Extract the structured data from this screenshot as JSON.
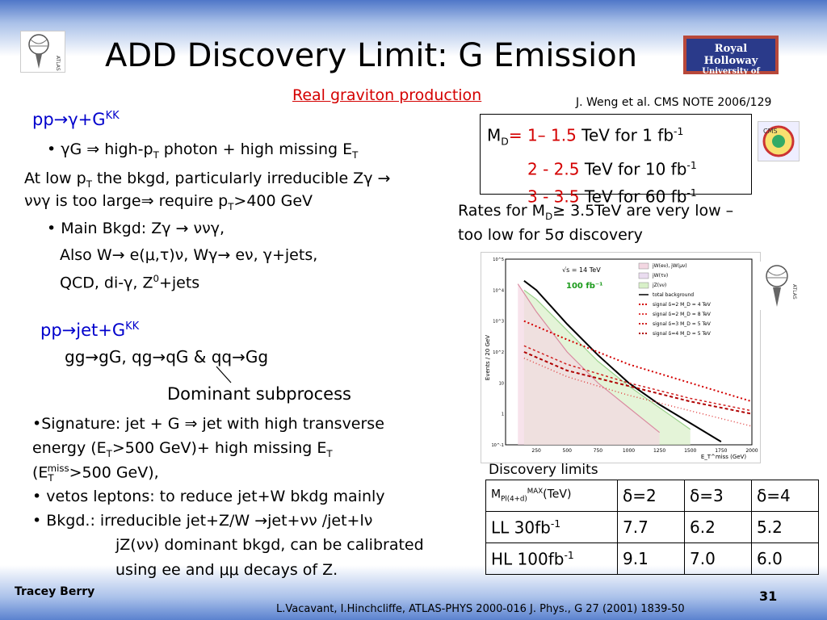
{
  "title": "ADD Discovery Limit: G Emission",
  "subtitle": "Real graviton production",
  "cms_ref": "J. Weng et al. CMS NOTE 2006/129",
  "logos": {
    "atlas_left": "atlas-logo",
    "royal_holloway_line1": "Royal Holloway",
    "royal_holloway_line2": "University of London",
    "cms": "cms-logo",
    "atlas_right": "atlas-logo"
  },
  "section1": {
    "heading_pre": "pp→γ+G",
    "heading_sup": "KK",
    "bullet1_pre": "• γG ⇒ high-p",
    "bullet1_sub1": "T",
    "bullet1_mid": " photon + high missing E",
    "bullet1_sub2": "T",
    "line1_pre": "At low p",
    "line1_sub": "T",
    "line1_post": " the bkgd, particularly irreducible Zγ →",
    "line2_pre": "ννγ is too large⇒ require p",
    "line2_sub": "T",
    "line2_post": ">400 GeV",
    "bkgd1": "• Main Bkgd: Zγ → ννγ,",
    "bkgd2": "Also W→ e(μ,τ)ν, Wγ→ eν, γ+jets,",
    "bkgd3_pre": "QCD, di-γ, Z",
    "bkgd3_sup": "0",
    "bkgd3_post": "+jets"
  },
  "md_box": {
    "label_pre": "M",
    "label_sub": "D",
    "rows": [
      {
        "prefix": "= ",
        "range": "1– 1.5",
        "text": " TeV for 1 fb",
        "sup": "-1"
      },
      {
        "prefix": "",
        "range": "2 - 2.5",
        "text": " TeV for 10 fb",
        "sup": "-1"
      },
      {
        "prefix": "",
        "range": "3 - 3.5",
        "text": " TeV for 60 fb",
        "sup": "-1"
      }
    ]
  },
  "rates": {
    "line1_pre": "Rates for M",
    "line1_sub": "D",
    "line1_post": "≥ 3.5TeV are very low –",
    "line2": "too low for 5σ discovery"
  },
  "section2": {
    "heading_pre": "pp→jet+G",
    "heading_sup": "KK",
    "processes": "gg→gG, qg→qG & qq→Gg",
    "dominant": "Dominant subprocess",
    "sig1": "•Signature: jet + G ⇒ jet with high transverse",
    "sig2_pre": "energy (E",
    "sig2_sub1": "T",
    "sig2_mid": ">500 GeV)+ high missing E",
    "sig2_sub2": "T",
    "sig3_pre": "(E",
    "sig3_sub": "T",
    "sig3_sup": "miss",
    "sig3_post": ">500 GeV),",
    "veto": "• vetos leptons: to reduce jet+W bkdg mainly",
    "bkgd1": "• Bkgd.: irreducible jet+Z/W →jet+νν /jet+lν",
    "bkgd2": "jZ(νν) dominant bkgd, can be calibrated",
    "bkgd3": "using ee and μμ decays of Z."
  },
  "chart_data": {
    "type": "line",
    "ylabel": "Events / 20 GeV",
    "xlabel": "E_T^miss (GeV)",
    "x_ticks": [
      "250",
      "500",
      "750",
      "1000",
      "1250",
      "1500",
      "1750",
      "2000"
    ],
    "y_ticks": [
      "10^-1",
      "1",
      "10",
      "10^2",
      "10^3",
      "10^4",
      "10^5"
    ],
    "ylim_log": [
      -1,
      5
    ],
    "xlim": [
      0,
      2000
    ],
    "annotations": [
      "√s = 14 TeV",
      "100 fb⁻¹"
    ],
    "legend": [
      "jW(eν), jW(μν)",
      "jW(τν)",
      "jZ(νν)",
      "total background",
      "signal δ=2  M_D = 4 TeV",
      "signal δ=2  M_D = 8 TeV",
      "signal δ=3  M_D = 5 TeV",
      "signal δ=4  M_D = 5 TeV"
    ],
    "legend_position": "top-right",
    "series": [
      {
        "name": "total background",
        "x": [
          150,
          250,
          500,
          750,
          1000,
          1250,
          1500,
          1750
        ],
        "log10y": [
          4.3,
          4.0,
          2.9,
          1.9,
          1.0,
          0.3,
          -0.3,
          -0.9
        ]
      },
      {
        "name": "jZ(νν)",
        "x": [
          150,
          250,
          500,
          750,
          1000,
          1250,
          1500
        ],
        "log10y": [
          4.0,
          3.7,
          2.7,
          1.7,
          0.9,
          0.2,
          -0.5
        ]
      },
      {
        "name": "jW(eν), jW(μν)",
        "x": [
          100,
          250,
          500,
          750,
          1000,
          1250
        ],
        "log10y": [
          4.2,
          3.3,
          2.0,
          1.0,
          0.2,
          -0.6
        ]
      },
      {
        "name": "signal δ=2  M_D = 4 TeV",
        "x": [
          150,
          500,
          1000,
          1500,
          2000
        ],
        "log10y": [
          3.0,
          2.4,
          1.6,
          1.0,
          0.4
        ]
      },
      {
        "name": "signal δ=2  M_D = 8 TeV",
        "x": [
          150,
          500,
          1000,
          1500,
          2000
        ],
        "log10y": [
          1.8,
          1.2,
          0.6,
          0.1,
          -0.4
        ]
      },
      {
        "name": "signal δ=3  M_D = 5 TeV",
        "x": [
          150,
          500,
          1000,
          1500,
          2000
        ],
        "log10y": [
          2.2,
          1.6,
          1.0,
          0.5,
          0.1
        ]
      },
      {
        "name": "signal δ=4  M_D = 5 TeV",
        "x": [
          150,
          500,
          1000,
          1500,
          2000
        ],
        "log10y": [
          2.0,
          1.4,
          0.9,
          0.4,
          0.0
        ]
      }
    ]
  },
  "discovery": {
    "caption": "Discovery limits",
    "header_pre": "M",
    "header_sub": "Pl(4+d)",
    "header_sup": "MAX",
    "header_post": "(TeV)",
    "cols": [
      "δ=2",
      "δ=3",
      "δ=4"
    ],
    "rows": [
      {
        "label": "LL 30fb",
        "sup": "-1",
        "vals": [
          "7.7",
          "6.2",
          "5.2"
        ]
      },
      {
        "label": "HL 100fb",
        "sup": "-1",
        "vals": [
          "9.1",
          "7.0",
          "6.0"
        ]
      }
    ]
  },
  "footer": {
    "author": "Tracey Berry",
    "page": "31",
    "reference": "L.Vacavant, I.Hinchcliffe, ATLAS-PHYS 2000-016  J. Phys., G 27 (2001) 1839-50"
  },
  "colors": {
    "accent_red": "#d40000",
    "accent_blue": "#0000cc"
  }
}
